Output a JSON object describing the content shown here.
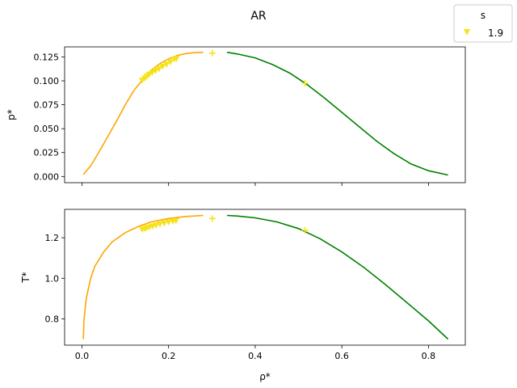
{
  "figure": {
    "title": "AR"
  },
  "legend": {
    "title": "s",
    "placement": "top-right",
    "entries": [
      {
        "label": "1.9",
        "marker": "triangle-down",
        "color": "#f5e31a"
      }
    ]
  },
  "colors": {
    "liquid_curve": "#ffa500",
    "vapor_curve": "#008000",
    "points": "#f5e31a",
    "axes": "#000000",
    "background": "#ffffff"
  },
  "chart_data": [
    {
      "type": "line",
      "panel": "top",
      "xlabel": "",
      "ylabel": "p*",
      "xlim": [
        -0.04,
        0.885
      ],
      "ylim": [
        -0.0065,
        0.1355
      ],
      "xticks": [
        0.0,
        0.2,
        0.4,
        0.6,
        0.8
      ],
      "xtick_labels": [],
      "yticks": [
        0.0,
        0.025,
        0.05,
        0.075,
        0.1,
        0.125
      ],
      "ytick_labels": [
        "0.000",
        "0.025",
        "0.050",
        "0.075",
        "0.100",
        "0.125"
      ],
      "grid": false,
      "series": [
        {
          "kind": "line",
          "color_key": "liquid_curve",
          "x": [
            0.003,
            0.02,
            0.04,
            0.06,
            0.08,
            0.1,
            0.12,
            0.14,
            0.16,
            0.18,
            0.2,
            0.22,
            0.24,
            0.26,
            0.28
          ],
          "y": [
            0.002,
            0.011,
            0.026,
            0.042,
            0.058,
            0.075,
            0.09,
            0.101,
            0.111,
            0.118,
            0.123,
            0.1265,
            0.1285,
            0.1295,
            0.1298
          ]
        },
        {
          "kind": "line",
          "color_key": "vapor_curve",
          "x": [
            0.335,
            0.36,
            0.4,
            0.44,
            0.48,
            0.52,
            0.56,
            0.6,
            0.64,
            0.68,
            0.72,
            0.76,
            0.8,
            0.845
          ],
          "y": [
            0.1298,
            0.128,
            0.124,
            0.117,
            0.108,
            0.096,
            0.082,
            0.067,
            0.052,
            0.037,
            0.024,
            0.013,
            0.006,
            0.0015
          ]
        },
        {
          "kind": "scatter",
          "marker": "triangle-down",
          "color_key": "points",
          "x": [
            0.139,
            0.145,
            0.15,
            0.155,
            0.162,
            0.17,
            0.178,
            0.186,
            0.195,
            0.204,
            0.213,
            0.218
          ],
          "y": [
            0.1003,
            0.1025,
            0.1045,
            0.1065,
            0.1085,
            0.1105,
            0.1125,
            0.1148,
            0.117,
            0.1195,
            0.1225,
            0.123
          ]
        },
        {
          "kind": "scatter",
          "marker": "plus",
          "color_key": "points",
          "x": [
            0.301,
            0.515
          ],
          "y": [
            0.129,
            0.0975
          ]
        }
      ]
    },
    {
      "type": "line",
      "panel": "bottom",
      "xlabel": "ρ*",
      "ylabel": "T*",
      "xlim": [
        -0.04,
        0.885
      ],
      "ylim": [
        0.67,
        1.34
      ],
      "xticks": [
        0.0,
        0.2,
        0.4,
        0.6,
        0.8
      ],
      "xtick_labels": [
        "0.0",
        "0.2",
        "0.4",
        "0.6",
        "0.8"
      ],
      "yticks": [
        0.8,
        1.0,
        1.2
      ],
      "ytick_labels": [
        "0.8",
        "1.0",
        "1.2"
      ],
      "grid": false,
      "series": [
        {
          "kind": "line",
          "color_key": "liquid_curve",
          "x": [
            0.003,
            0.005,
            0.01,
            0.02,
            0.03,
            0.05,
            0.07,
            0.1,
            0.13,
            0.16,
            0.2,
            0.24,
            0.28
          ],
          "y": [
            0.7,
            0.8,
            0.9,
            1.0,
            1.06,
            1.13,
            1.18,
            1.225,
            1.255,
            1.278,
            1.295,
            1.305,
            1.31
          ]
        },
        {
          "kind": "line",
          "color_key": "vapor_curve",
          "x": [
            0.335,
            0.36,
            0.4,
            0.45,
            0.5,
            0.55,
            0.6,
            0.65,
            0.7,
            0.75,
            0.8,
            0.845
          ],
          "y": [
            1.31,
            1.307,
            1.298,
            1.278,
            1.245,
            1.195,
            1.13,
            1.055,
            0.97,
            0.88,
            0.79,
            0.7
          ]
        },
        {
          "kind": "scatter",
          "marker": "triangle-down",
          "color_key": "points",
          "x": [
            0.139,
            0.145,
            0.15,
            0.156,
            0.163,
            0.171,
            0.18,
            0.19,
            0.2,
            0.21,
            0.217
          ],
          "y": [
            1.24,
            1.244,
            1.248,
            1.252,
            1.256,
            1.261,
            1.266,
            1.271,
            1.276,
            1.28,
            1.283
          ]
        },
        {
          "kind": "scatter",
          "marker": "plus",
          "color_key": "points",
          "x": [
            0.301,
            0.515
          ],
          "y": [
            1.295,
            1.237
          ]
        }
      ]
    }
  ]
}
